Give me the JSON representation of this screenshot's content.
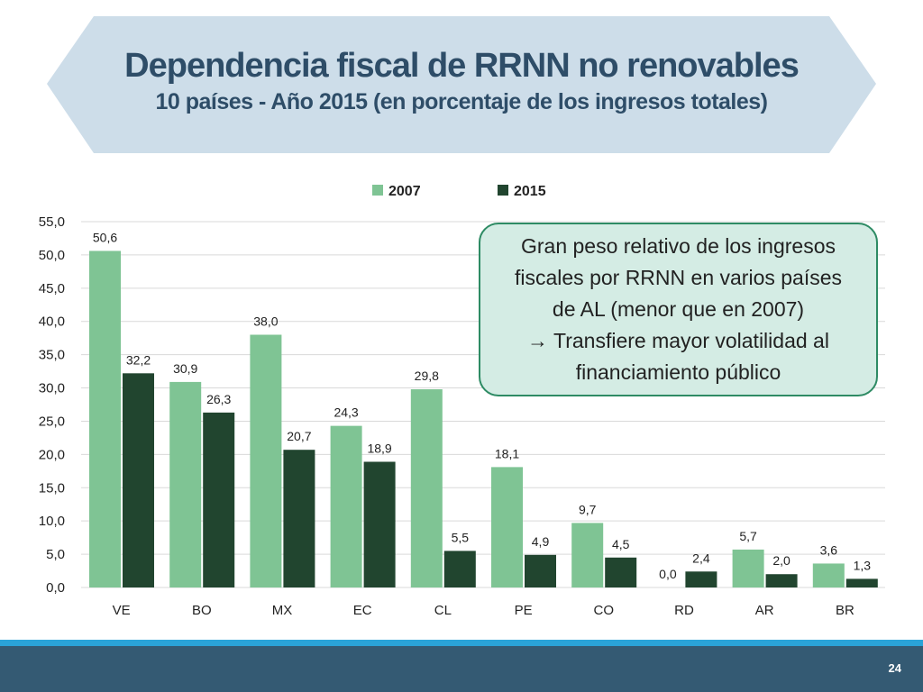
{
  "header": {
    "title": "Dependencia fiscal de RRNN no renovables",
    "subtitle": "10 países - Año 2015 (en porcentaje de los ingresos totales)"
  },
  "chart_data": {
    "type": "bar",
    "title": "",
    "xlabel": "",
    "ylabel": "",
    "ylim": [
      0,
      55
    ],
    "y_ticks": [
      "0,0",
      "5,0",
      "10,0",
      "15,0",
      "20,0",
      "25,0",
      "30,0",
      "35,0",
      "40,0",
      "45,0",
      "50,0",
      "55,0"
    ],
    "grid": true,
    "legend_position": "top",
    "categories": [
      "VE",
      "BO",
      "MX",
      "EC",
      "CL",
      "PE",
      "CO",
      "RD",
      "AR",
      "BR"
    ],
    "series": [
      {
        "name": "2007",
        "color": "#7fc494",
        "values": [
          50.6,
          30.9,
          38.0,
          24.3,
          29.8,
          18.1,
          9.7,
          0.0,
          5.7,
          3.6
        ],
        "labels": [
          "50,6",
          "30,9",
          "38,0",
          "24,3",
          "29,8",
          "18,1",
          "9,7",
          "0,0",
          "5,7",
          "3,6"
        ]
      },
      {
        "name": "2015",
        "color": "#21452f",
        "values": [
          32.2,
          26.3,
          20.7,
          18.9,
          5.5,
          4.9,
          4.5,
          2.4,
          2.0,
          1.3
        ],
        "labels": [
          "32,2",
          "26,3",
          "20,7",
          "18,9",
          "5,5",
          "4,9",
          "4,5",
          "2,4",
          "2,0",
          "1,3"
        ]
      }
    ]
  },
  "callout": {
    "lines": [
      "Gran peso relativo de los ingresos",
      "fiscales por RRNN en varios países",
      "de AL (menor que en 2007)",
      "→ Transfiere mayor volatilidad al",
      "financiamiento público"
    ]
  },
  "footer": {
    "page_number": "24"
  },
  "colors": {
    "banner_fill": "#cddde9",
    "title_text": "#2e4d68",
    "footer_bar": "#345a73",
    "footer_line": "#2aa3d8",
    "callout_fill": "#d4ece4",
    "callout_border": "#2e8b64"
  }
}
